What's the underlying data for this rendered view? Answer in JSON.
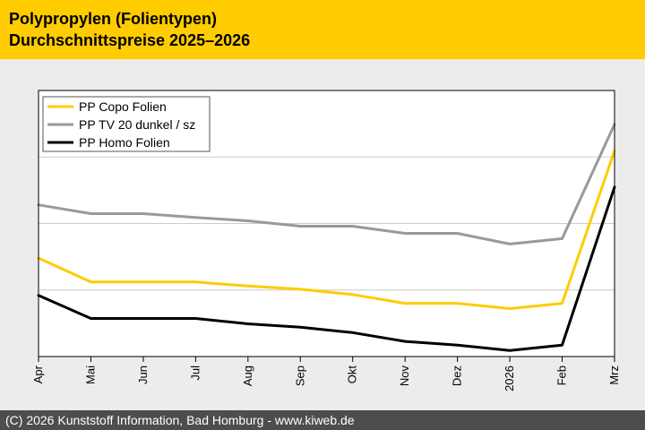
{
  "header": {
    "title_line1": "Polypropylen (Folientypen)",
    "title_line2": "Durchschnittspreise 2025–2026",
    "background_color": "#ffcc00"
  },
  "footer": {
    "text": "(C) 2026 Kunststoff Information, Bad Homburg - www.kiweb.de",
    "background_color": "#4d4d4d"
  },
  "chart_data": {
    "type": "line",
    "title": "Polypropylen (Folientypen) Durchschnittspreise 2025–2026",
    "xlabel": "",
    "ylabel": "",
    "categories": [
      "Apr",
      "Mai",
      "Jun",
      "Jul",
      "Aug",
      "Sep",
      "Okt",
      "Nov",
      "Dez",
      "2026",
      "Feb",
      "Mrz"
    ],
    "ylim": [
      0,
      100
    ],
    "grid": "horizontal",
    "legend_position": "top-left",
    "series": [
      {
        "name": "PP Copo Folien",
        "color": "#ffcc00",
        "values": [
          37,
          28,
          28,
          28,
          26.5,
          25.3,
          23.3,
          20,
          20,
          18,
          20,
          77.3
        ]
      },
      {
        "name": "PP TV 20 dunkel / sz",
        "color": "#999999",
        "values": [
          57,
          53.7,
          53.7,
          52.3,
          51,
          49,
          49,
          46.3,
          46.3,
          42.3,
          44.3,
          87.3
        ]
      },
      {
        "name": "PP Homo Folien",
        "color": "#000000",
        "values": [
          23,
          14.3,
          14.3,
          14.3,
          12.3,
          11,
          9,
          5.7,
          4.3,
          2.3,
          4.3,
          63.7
        ]
      }
    ]
  }
}
